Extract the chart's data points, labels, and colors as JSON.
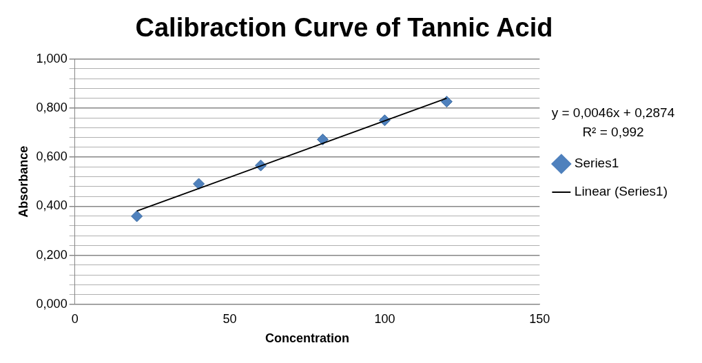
{
  "chart_data": {
    "type": "scatter",
    "title": "Calibraction Curve of Tannic Acid",
    "xlabel": "Concentration",
    "ylabel": "Absorbance",
    "x": [
      20,
      40,
      60,
      80,
      100,
      120
    ],
    "series": [
      {
        "name": "Series1",
        "color": "#4f81bd",
        "marker": "diamond",
        "values": [
          0.359,
          0.491,
          0.566,
          0.672,
          0.75,
          0.826
        ]
      },
      {
        "name": "Linear (Series1)",
        "type": "line",
        "color": "#000000",
        "x": [
          20,
          120
        ],
        "values": [
          0.38,
          0.84
        ],
        "marker": "none"
      }
    ],
    "xlim": [
      0,
      150
    ],
    "xticks": [
      0,
      50,
      100,
      150
    ],
    "ylim": [
      0,
      1
    ],
    "yticks": [
      {
        "value": 0,
        "label": "0,000"
      },
      {
        "value": 0.04,
        "label": null
      },
      {
        "value": 0.08,
        "label": null
      },
      {
        "value": 0.12,
        "label": null
      },
      {
        "value": 0.16,
        "label": null
      },
      {
        "value": 0.2,
        "label": "0,200"
      },
      {
        "value": 0.24,
        "label": null
      },
      {
        "value": 0.28,
        "label": null
      },
      {
        "value": 0.32,
        "label": null
      },
      {
        "value": 0.36,
        "label": null
      },
      {
        "value": 0.4,
        "label": "0,400"
      },
      {
        "value": 0.44,
        "label": null
      },
      {
        "value": 0.48,
        "label": null
      },
      {
        "value": 0.52,
        "label": null
      },
      {
        "value": 0.56,
        "label": null
      },
      {
        "value": 0.6,
        "label": "0,600"
      },
      {
        "value": 0.64,
        "label": null
      },
      {
        "value": 0.68,
        "label": null
      },
      {
        "value": 0.72,
        "label": null
      },
      {
        "value": 0.76,
        "label": null
      },
      {
        "value": 0.8,
        "label": "0,800"
      },
      {
        "value": 0.84,
        "label": null
      },
      {
        "value": 0.88,
        "label": null
      },
      {
        "value": 0.92,
        "label": null
      },
      {
        "value": 0.96,
        "label": null
      },
      {
        "value": 1,
        "label": "1,000"
      }
    ],
    "grid": "y",
    "legend": "right",
    "annotations": [
      "y = 0,0046x + 0,2874",
      "R² = 0,992"
    ]
  }
}
